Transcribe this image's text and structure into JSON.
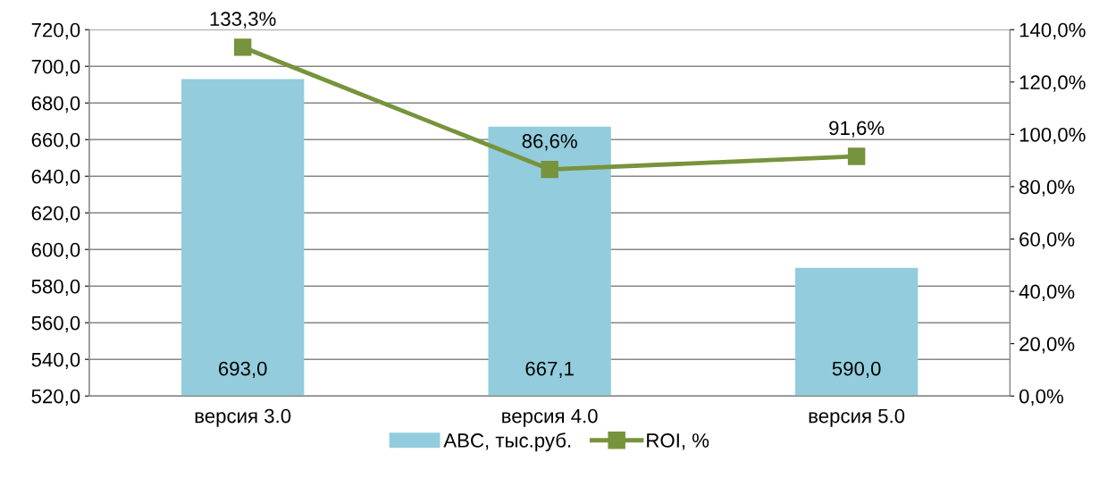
{
  "chart_data": {
    "type": "bar",
    "categories": [
      "версия 3.0",
      "версия 4.0",
      "версия 5.0"
    ],
    "series": [
      {
        "name": "ABC, тыс.руб.",
        "color": "#93cddd",
        "values": [
          693.0,
          667.1,
          590.0
        ],
        "value_labels": [
          "693,0",
          "667,1",
          "590,0"
        ]
      },
      {
        "name": "ROI, %",
        "type": "line",
        "axis": "y2",
        "color": "#77933c",
        "marker": "square",
        "values": [
          133.3,
          86.6,
          91.6
        ],
        "value_labels": [
          "133,3%",
          "86,6%",
          "91,6%"
        ]
      }
    ],
    "ylim": [
      520,
      720
    ],
    "yticks": [
      {
        "value": 520,
        "label": "520,0"
      },
      {
        "value": 540,
        "label": "540,0"
      },
      {
        "value": 560,
        "label": "560,0"
      },
      {
        "value": 580,
        "label": "580,0"
      },
      {
        "value": 600,
        "label": "600,0"
      },
      {
        "value": 620,
        "label": "620,0"
      },
      {
        "value": 640,
        "label": "640,0"
      },
      {
        "value": 660,
        "label": "660,0"
      },
      {
        "value": 680,
        "label": "680,0"
      },
      {
        "value": 700,
        "label": "700,0"
      },
      {
        "value": 720,
        "label": "720,0"
      }
    ],
    "y2lim": [
      0,
      140
    ],
    "y2ticks": [
      {
        "value": 0,
        "label": "0,0%"
      },
      {
        "value": 20,
        "label": "20,0%"
      },
      {
        "value": 40,
        "label": "40,0%"
      },
      {
        "value": 60,
        "label": "60,0%"
      },
      {
        "value": 80,
        "label": "80,0%"
      },
      {
        "value": 100,
        "label": "100,0%"
      },
      {
        "value": 120,
        "label": "120,0%"
      },
      {
        "value": 140,
        "label": "140,0%"
      }
    ],
    "grid": "y",
    "legend": "bottom"
  }
}
